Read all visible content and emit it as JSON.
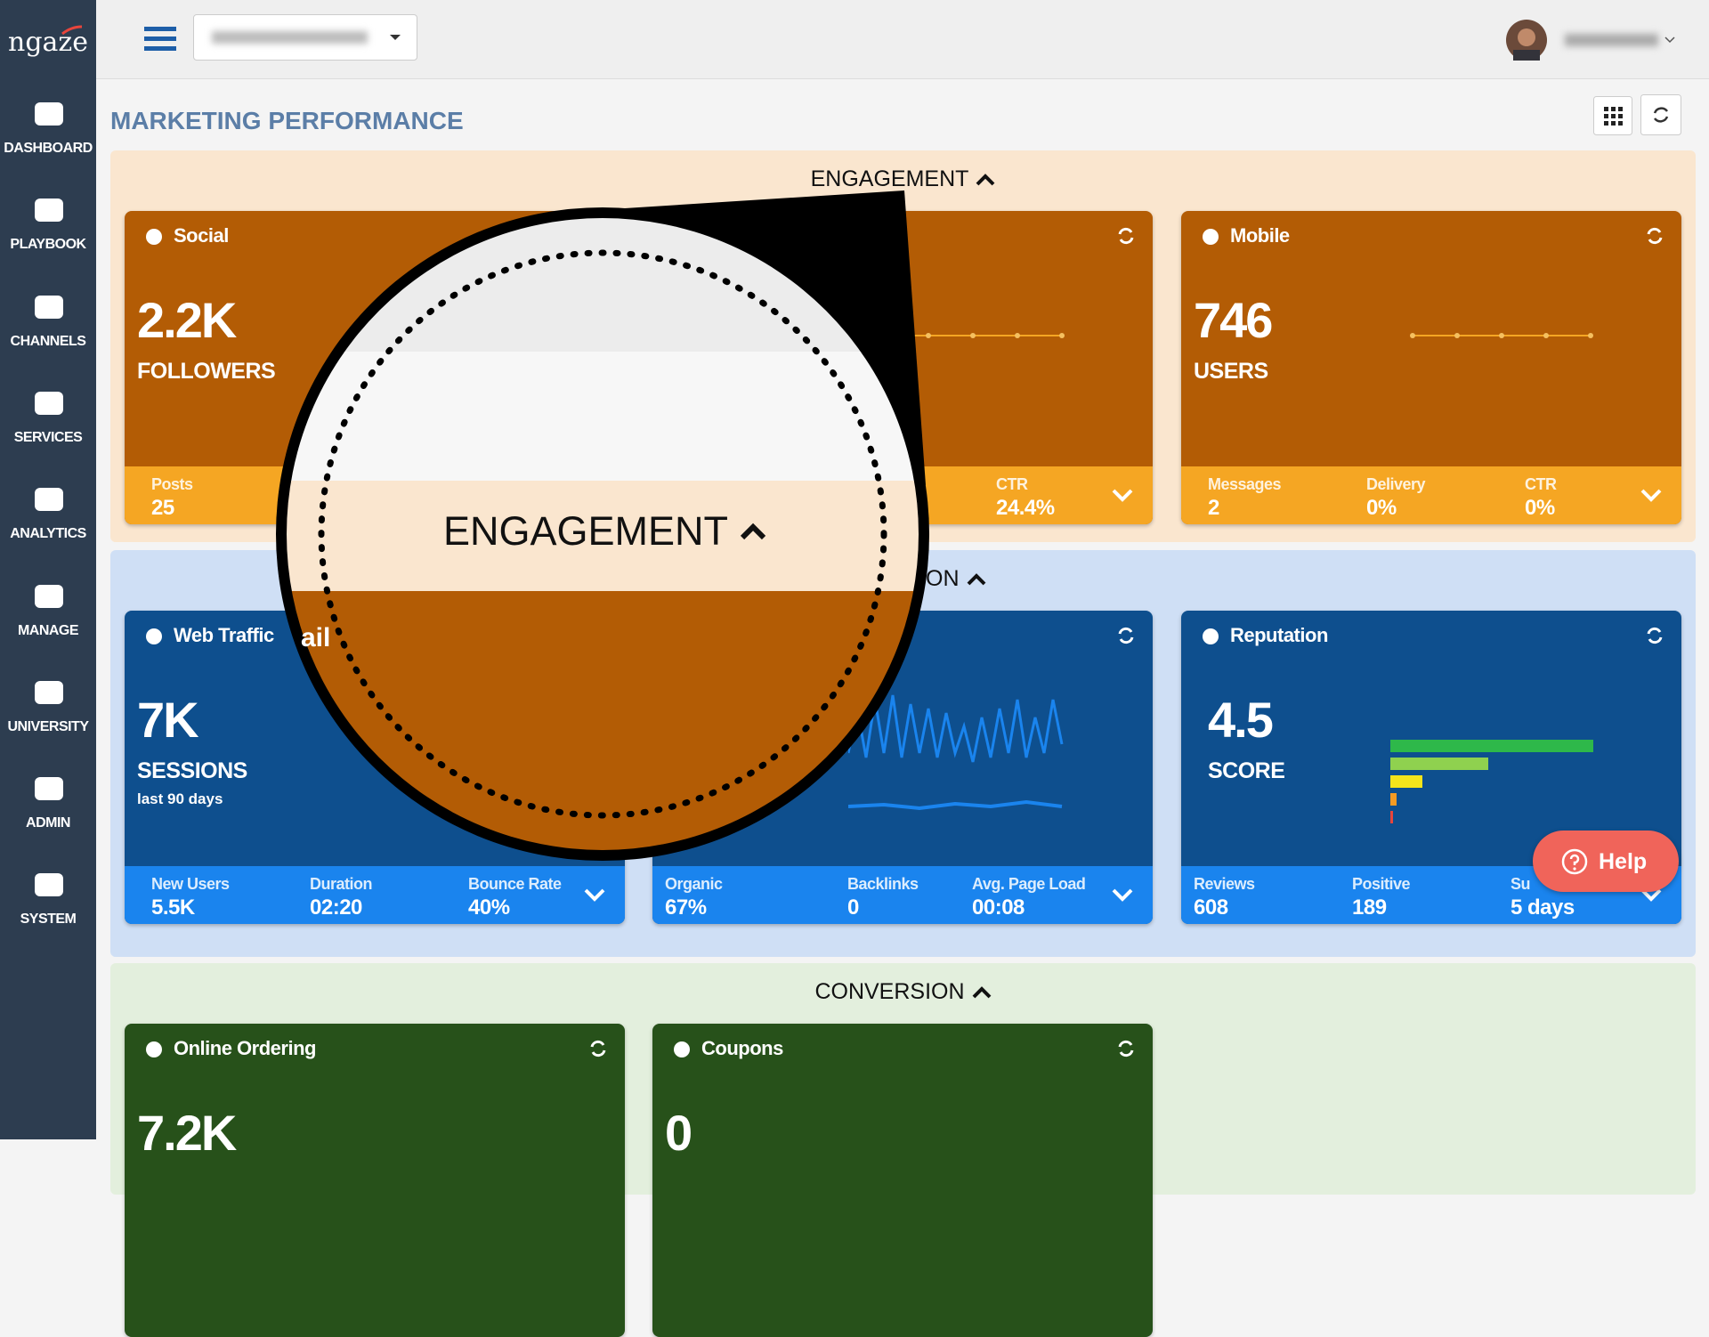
{
  "sidebar": {
    "logo": "ngaze",
    "items": [
      "DASHBOARD",
      "PLAYBOOK",
      "CHANNELS",
      "SERVICES",
      "ANALYTICS",
      "MANAGE",
      "UNIVERSITY",
      "ADMIN",
      "SYSTEM"
    ]
  },
  "header": {
    "title": "MARKETING PERFORMANCE"
  },
  "sections": [
    {
      "title": "ENGAGEMENT",
      "cards": [
        {
          "title": "Social",
          "value": "2.2K",
          "label": "FOLLOWERS",
          "stats": [
            {
              "label": "Posts",
              "value": "25"
            }
          ]
        },
        {
          "stats": [
            {
              "label": "CTR",
              "value": "24.4%"
            }
          ]
        },
        {
          "title": "Mobile",
          "value": "746",
          "label": "USERS",
          "stats": [
            {
              "label": "Messages",
              "value": "2"
            },
            {
              "label": "Delivery",
              "value": "0%"
            },
            {
              "label": "CTR",
              "value": "0%"
            }
          ]
        }
      ]
    },
    {
      "title": "ON",
      "cards": [
        {
          "title": "Web Traffic",
          "value": "7K",
          "label": "SESSIONS",
          "note": "last 90 days",
          "stats": [
            {
              "label": "New Users",
              "value": "5.5K"
            },
            {
              "label": "Duration",
              "value": "02:20"
            },
            {
              "label": "Bounce Rate",
              "value": "40%"
            }
          ]
        },
        {
          "stats": [
            {
              "label": "Organic",
              "value": "67%"
            },
            {
              "label": "Backlinks",
              "value": "0"
            },
            {
              "label": "Avg. Page Load",
              "value": "00:08"
            }
          ]
        },
        {
          "title": "Reputation",
          "value": "4.5",
          "label": "SCORE",
          "stats": [
            {
              "label": "Reviews",
              "value": "608"
            },
            {
              "label": "Positive",
              "value": "189"
            },
            {
              "label": "Su",
              "value": "5 days"
            }
          ]
        }
      ]
    },
    {
      "title": "CONVERSION",
      "cards": [
        {
          "title": "Online Ordering",
          "value": "7.2K"
        },
        {
          "title": "Coupons",
          "value": "0"
        }
      ]
    }
  ],
  "magnifier": {
    "fragment": "ail"
  },
  "help": "Help"
}
